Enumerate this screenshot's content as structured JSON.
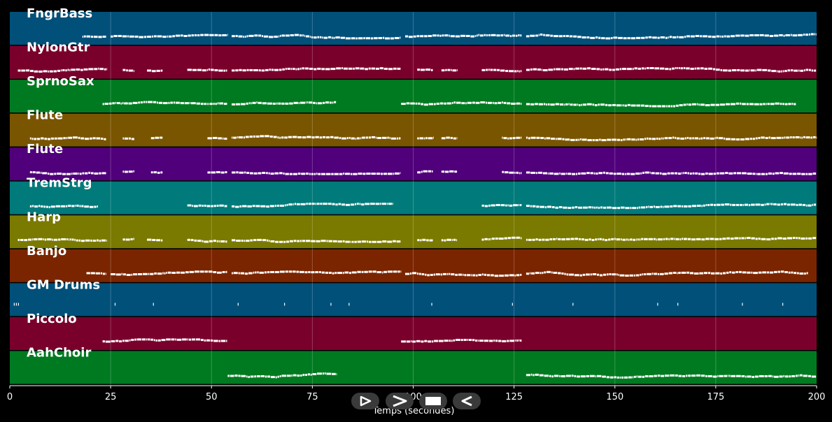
{
  "chart_data": {
    "type": "piano-roll",
    "xlabel": "Temps (secondes)",
    "xlim": [
      0,
      200
    ],
    "xticks": [
      0,
      25,
      50,
      75,
      100,
      125,
      150,
      175,
      200
    ],
    "grid": true,
    "tracks": [
      {
        "name": "FngrBass",
        "color": "#00507a",
        "segments": [
          [
            18,
            24
          ],
          [
            25,
            54
          ],
          [
            55,
            97
          ],
          [
            98,
            127
          ],
          [
            128,
            200
          ]
        ]
      },
      {
        "name": "NylonGtr",
        "color": "#7a002c",
        "segments": [
          [
            2,
            24
          ],
          [
            28,
            31
          ],
          [
            34,
            38
          ],
          [
            44,
            54
          ],
          [
            55,
            97
          ],
          [
            101,
            105
          ],
          [
            107,
            111
          ],
          [
            117,
            127
          ],
          [
            128,
            200
          ]
        ]
      },
      {
        "name": "SprnoSax",
        "color": "#007a20",
        "segments": [
          [
            23,
            54
          ],
          [
            55,
            81
          ],
          [
            97,
            127
          ],
          [
            128,
            195
          ]
        ]
      },
      {
        "name": "Flute",
        "color": "#7a5500",
        "segments": [
          [
            5,
            24
          ],
          [
            28,
            31
          ],
          [
            35,
            38
          ],
          [
            49,
            54
          ],
          [
            55,
            97
          ],
          [
            101,
            105
          ],
          [
            107,
            111
          ],
          [
            122,
            127
          ],
          [
            128,
            200
          ]
        ]
      },
      {
        "name": "Flute",
        "color": "#50007a",
        "segments": [
          [
            5,
            24
          ],
          [
            28,
            31
          ],
          [
            35,
            38
          ],
          [
            49,
            54
          ],
          [
            55,
            97
          ],
          [
            101,
            105
          ],
          [
            107,
            111
          ],
          [
            122,
            127
          ],
          [
            128,
            200
          ]
        ]
      },
      {
        "name": "TremStrg",
        "color": "#007a7a",
        "segments": [
          [
            5,
            22
          ],
          [
            44,
            54
          ],
          [
            55,
            95
          ],
          [
            117,
            127
          ],
          [
            128,
            200
          ]
        ]
      },
      {
        "name": "Harp",
        "color": "#7a7a00",
        "segments": [
          [
            2,
            24
          ],
          [
            28,
            31
          ],
          [
            34,
            38
          ],
          [
            44,
            54
          ],
          [
            55,
            97
          ],
          [
            101,
            105
          ],
          [
            107,
            111
          ],
          [
            117,
            127
          ],
          [
            128,
            200
          ]
        ]
      },
      {
        "name": "Banjo",
        "color": "#7a2500",
        "segments": [
          [
            19,
            24
          ],
          [
            25,
            54
          ],
          [
            55,
            97
          ],
          [
            98,
            127
          ],
          [
            128,
            198
          ]
        ]
      },
      {
        "name": "GM Drums",
        "color": "#00507a",
        "segments": [
          [
            1,
            2.5
          ],
          [
            26,
            26.5
          ],
          [
            35.5,
            36
          ],
          [
            56.5,
            57
          ],
          [
            68,
            68.5
          ],
          [
            79.5,
            80
          ],
          [
            84,
            84.5
          ],
          [
            104.5,
            105
          ],
          [
            124.5,
            125
          ],
          [
            139.5,
            140
          ],
          [
            160.5,
            161
          ],
          [
            165.5,
            166
          ],
          [
            181.5,
            182
          ],
          [
            191.5,
            192
          ]
        ]
      },
      {
        "name": "Piccolo",
        "color": "#7a002c",
        "segments": [
          [
            23,
            54
          ],
          [
            97,
            127
          ]
        ]
      },
      {
        "name": "AahChoir",
        "color": "#007a20",
        "segments": [
          [
            54,
            81
          ],
          [
            128,
            200
          ]
        ]
      }
    ]
  },
  "controls": [
    {
      "name": "play-button",
      "icon": "play-icon"
    },
    {
      "name": "forward-button",
      "icon": "forward-icon"
    },
    {
      "name": "stop-button",
      "icon": "stop-icon"
    },
    {
      "name": "rewind-button",
      "icon": "rewind-icon"
    }
  ]
}
